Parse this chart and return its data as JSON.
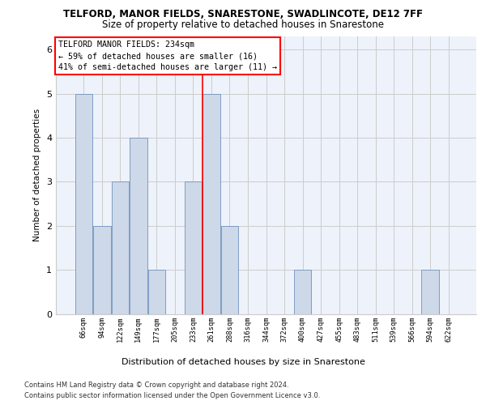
{
  "title1": "TELFORD, MANOR FIELDS, SNARESTONE, SWADLINCOTE, DE12 7FF",
  "title2": "Size of property relative to detached houses in Snarestone",
  "xlabel": "Distribution of detached houses by size in Snarestone",
  "ylabel": "Number of detached properties",
  "categories": [
    "66sqm",
    "94sqm",
    "122sqm",
    "149sqm",
    "177sqm",
    "205sqm",
    "233sqm",
    "261sqm",
    "288sqm",
    "316sqm",
    "344sqm",
    "372sqm",
    "400sqm",
    "427sqm",
    "455sqm",
    "483sqm",
    "511sqm",
    "539sqm",
    "566sqm",
    "594sqm",
    "622sqm"
  ],
  "values": [
    5,
    2,
    3,
    4,
    1,
    0,
    3,
    5,
    2,
    0,
    0,
    0,
    1,
    0,
    0,
    0,
    0,
    0,
    0,
    1,
    0
  ],
  "bar_color": "#cdd8e8",
  "bar_edge_color": "#7092be",
  "reference_line_index": 6.5,
  "annotation_box_text": "TELFORD MANOR FIELDS: 234sqm\n← 59% of detached houses are smaller (16)\n41% of semi-detached houses are larger (11) →",
  "ylim": [
    0,
    6.3
  ],
  "yticks": [
    0,
    1,
    2,
    3,
    4,
    5,
    6
  ],
  "grid_color": "#cccccc",
  "footer1": "Contains HM Land Registry data © Crown copyright and database right 2024.",
  "footer2": "Contains public sector information licensed under the Open Government Licence v3.0.",
  "bg_color": "#eef2fa",
  "annotation_box_color": "white",
  "annotation_box_edge": "red",
  "ref_line_color": "red"
}
